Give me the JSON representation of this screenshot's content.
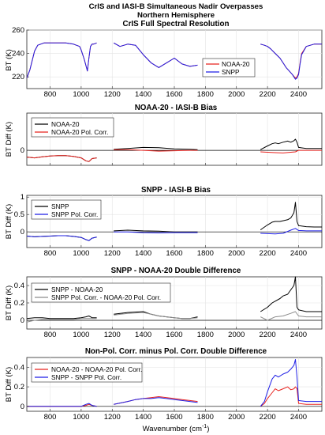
{
  "figure": {
    "title_lines": [
      "CrIS and IASI-B Simultaneous Nadir Overpasses",
      "Northern Hemisphere",
      "CrIS Full Spectral Resolution"
    ],
    "xlabel": "Wavenumber (cm⁻¹)",
    "xlabel_main": "Wavenumber (cm",
    "xlabel_sup": "-1",
    "xlabel_close": ")"
  },
  "chart_data": [
    {
      "type": "line",
      "title": "",
      "xlabel": "",
      "ylabel": "BT (K)",
      "xlim": [
        650,
        2550
      ],
      "ylim": [
        210,
        260
      ],
      "xticks": [
        800,
        1000,
        1200,
        1400,
        1600,
        1800,
        2000,
        2200,
        2400
      ],
      "yticks": [
        220,
        240,
        260
      ],
      "grid": true,
      "legend_position": "right",
      "series": [
        {
          "name": "NOAA-20",
          "color": "#e8231f",
          "x": [
            650,
            670,
            700,
            720,
            760,
            800,
            850,
            900,
            950,
            990,
            1000,
            1020,
            1030,
            1040,
            1050,
            1060,
            1070,
            1080,
            1100,
            1210,
            1250,
            1300,
            1350,
            1400,
            1450,
            1500,
            1550,
            1600,
            1650,
            1700,
            1750,
            2155,
            2180,
            2200,
            2220,
            2250,
            2280,
            2300,
            2320,
            2340,
            2360,
            2380,
            2390,
            2400,
            2410,
            2420,
            2450,
            2500,
            2550
          ],
          "y": [
            219,
            226,
            242,
            247,
            249,
            249,
            249,
            249,
            248,
            246,
            243,
            235,
            230,
            225,
            236,
            246,
            248,
            248,
            249,
            249,
            246,
            248,
            247,
            239,
            232,
            228,
            232,
            236,
            231,
            229,
            230,
            248,
            247,
            246,
            244,
            240,
            236,
            232,
            228,
            225,
            222,
            219,
            220,
            223,
            232,
            240,
            246,
            248,
            248
          ]
        },
        {
          "name": "SNPP",
          "color": "#1f1fe6",
          "x": [
            650,
            670,
            700,
            720,
            760,
            800,
            850,
            900,
            950,
            990,
            1000,
            1020,
            1030,
            1040,
            1050,
            1060,
            1070,
            1080,
            1100,
            1210,
            1250,
            1300,
            1350,
            1400,
            1450,
            1500,
            1550,
            1600,
            1650,
            1700,
            1750,
            2155,
            2180,
            2200,
            2220,
            2250,
            2280,
            2300,
            2320,
            2340,
            2360,
            2380,
            2390,
            2400,
            2410,
            2420,
            2450,
            2500,
            2550
          ],
          "y": [
            219,
            226,
            242,
            247,
            249,
            249,
            249,
            249,
            248,
            246,
            243,
            235,
            230,
            225,
            236,
            246,
            248,
            248,
            249,
            249,
            246,
            248,
            247,
            239,
            232,
            228,
            232,
            236,
            231,
            229,
            230,
            248,
            247,
            246,
            244,
            240,
            236,
            232,
            228,
            225,
            222,
            218,
            219,
            222,
            231,
            239,
            246,
            248,
            248
          ]
        }
      ]
    },
    {
      "type": "line",
      "title": "NOAA-20 - IASI-B Bias",
      "xlabel": "",
      "ylabel": "BT Diff (K)",
      "xlim": [
        650,
        2550
      ],
      "ylim": [
        -0.4,
        1.0
      ],
      "yticks": [
        0
      ],
      "grid": true,
      "legend_position": "top-left",
      "series": [
        {
          "name": "NOAA-20",
          "color": "#000000",
          "x": [
            650,
            700,
            750,
            800,
            850,
            900,
            950,
            1000,
            1030,
            1050,
            1070,
            1100,
            1210,
            1300,
            1400,
            1500,
            1600,
            1700,
            1750,
            2155,
            2200,
            2230,
            2250,
            2270,
            2300,
            2330,
            2350,
            2370,
            2380,
            2390,
            2400,
            2450,
            2500,
            2550
          ],
          "y": [
            -0.18,
            -0.2,
            -0.17,
            -0.15,
            -0.14,
            -0.14,
            -0.16,
            -0.2,
            -0.28,
            -0.3,
            -0.22,
            -0.2,
            0.03,
            0.05,
            0.08,
            0.07,
            0.04,
            0.03,
            0.02,
            0.02,
            0.12,
            0.18,
            0.2,
            0.18,
            0.22,
            0.25,
            0.22,
            0.26,
            0.3,
            0.22,
            0.08,
            0.05,
            0.05,
            0.05
          ]
        },
        {
          "name": "NOAA-20 Pol. Corr.",
          "color": "#e8231f",
          "x": [
            650,
            700,
            750,
            800,
            850,
            900,
            950,
            1000,
            1030,
            1050,
            1070,
            1100,
            1210,
            1300,
            1400,
            1500,
            1600,
            1700,
            1750,
            2155,
            2200,
            2250,
            2300,
            2350,
            2380,
            2400,
            2450,
            2500,
            2550
          ],
          "y": [
            -0.18,
            -0.2,
            -0.17,
            -0.15,
            -0.14,
            -0.14,
            -0.16,
            -0.2,
            -0.28,
            -0.3,
            -0.22,
            -0.2,
            0.02,
            0.02,
            0.0,
            -0.02,
            -0.01,
            0.0,
            0.0,
            -0.04,
            -0.05,
            -0.06,
            -0.07,
            -0.05,
            -0.04,
            0.0,
            0.0,
            0.0,
            0.0
          ]
        }
      ]
    },
    {
      "type": "line",
      "title": "SNPP - IASI-B Bias",
      "xlabel": "",
      "ylabel": "BT Diff (K)",
      "xlim": [
        650,
        2550
      ],
      "ylim": [
        -0.45,
        1.05
      ],
      "xticks": [
        800,
        1000,
        1200,
        1400,
        1600,
        1800,
        2000,
        2200,
        2400
      ],
      "yticks": [
        -0.5,
        0,
        0.5,
        1
      ],
      "grid": true,
      "legend_position": "top-left",
      "series": [
        {
          "name": "SNPP",
          "color": "#000000",
          "x": [
            650,
            700,
            750,
            800,
            850,
            900,
            950,
            1000,
            1030,
            1050,
            1070,
            1100,
            1210,
            1300,
            1400,
            1500,
            1600,
            1700,
            1750,
            2155,
            2200,
            2230,
            2250,
            2280,
            2300,
            2330,
            2350,
            2370,
            2380,
            2390,
            2400,
            2450,
            2500,
            2550
          ],
          "y": [
            -0.12,
            -0.14,
            -0.13,
            -0.12,
            -0.11,
            -0.11,
            -0.13,
            -0.16,
            -0.22,
            -0.25,
            -0.18,
            -0.15,
            0.03,
            0.05,
            0.03,
            0.02,
            0.0,
            0.0,
            0.0,
            0.06,
            0.2,
            0.28,
            0.3,
            0.3,
            0.32,
            0.35,
            0.4,
            0.55,
            0.85,
            0.3,
            0.18,
            0.15,
            0.14,
            0.14
          ]
        },
        {
          "name": "SNPP Pol. Corr.",
          "color": "#1f1fe6",
          "x": [
            650,
            700,
            750,
            800,
            850,
            900,
            950,
            1000,
            1030,
            1050,
            1070,
            1100,
            1210,
            1300,
            1400,
            1500,
            1600,
            1700,
            1750,
            2155,
            2200,
            2250,
            2300,
            2350,
            2380,
            2400,
            2450,
            2500,
            2550
          ],
          "y": [
            -0.12,
            -0.14,
            -0.13,
            -0.12,
            -0.11,
            -0.11,
            -0.13,
            -0.16,
            -0.22,
            -0.25,
            -0.18,
            -0.15,
            0.0,
            0.0,
            -0.02,
            -0.03,
            -0.02,
            -0.02,
            -0.02,
            -0.04,
            -0.05,
            -0.06,
            -0.04,
            0.05,
            0.1,
            0.04,
            0.03,
            0.03,
            0.03
          ]
        }
      ]
    },
    {
      "type": "line",
      "title": "SNPP - NOAA-20 Double Difference",
      "xlabel": "",
      "ylabel": "BT Diff (K)",
      "xlim": [
        650,
        2550
      ],
      "ylim": [
        -0.1,
        0.5
      ],
      "xticks": [
        800,
        1000,
        1200,
        1400,
        1600,
        1800,
        2000,
        2200,
        2400
      ],
      "yticks": [
        0,
        0.2,
        0.4
      ],
      "grid": true,
      "legend_position": "top-left",
      "series": [
        {
          "name": "SNPP - NOAA-20",
          "color": "#000000",
          "x": [
            650,
            700,
            750,
            800,
            850,
            900,
            950,
            1000,
            1030,
            1050,
            1070,
            1100,
            1210,
            1300,
            1400,
            1450,
            1500,
            1550,
            1600,
            1650,
            1700,
            1750,
            2155,
            2200,
            2230,
            2250,
            2280,
            2300,
            2330,
            2350,
            2370,
            2380,
            2390,
            2400,
            2450,
            2500,
            2550
          ],
          "y": [
            0.02,
            0.03,
            0.03,
            0.02,
            0.02,
            0.02,
            0.02,
            0.03,
            0.04,
            0.05,
            0.03,
            0.03,
            0.07,
            0.09,
            0.1,
            0.07,
            0.05,
            0.04,
            0.03,
            0.02,
            0.02,
            0.04,
            0.1,
            0.15,
            0.2,
            0.22,
            0.25,
            0.28,
            0.3,
            0.35,
            0.4,
            0.5,
            0.15,
            0.12,
            0.1,
            0.1,
            0.1
          ]
        },
        {
          "name": "SNPP Pol. Corr. - NOAA-20 Pol. Corr.",
          "color": "#8c8c8c",
          "x": [
            650,
            700,
            750,
            800,
            850,
            900,
            950,
            1000,
            1030,
            1050,
            1070,
            1100,
            1210,
            1300,
            1400,
            1450,
            1500,
            1550,
            1600,
            1650,
            1700,
            1750,
            2155,
            2200,
            2250,
            2300,
            2350,
            2380,
            2400,
            2450,
            2500,
            2550
          ],
          "y": [
            -0.02,
            0.0,
            0.01,
            0.01,
            0.01,
            0.01,
            0.01,
            0.02,
            0.02,
            0.02,
            0.02,
            0.02,
            0.06,
            0.08,
            0.09,
            0.07,
            0.05,
            0.04,
            0.03,
            0.02,
            0.02,
            0.03,
            0.04,
            0.0,
            0.04,
            0.05,
            0.08,
            0.1,
            0.05,
            0.04,
            0.04,
            0.04
          ]
        }
      ]
    },
    {
      "type": "line",
      "title": "Non-Pol. Corr. minus Pol. Corr. Double Difference",
      "xlabel": "Wavenumber (cm-1)",
      "ylabel": "BT Diff (K)",
      "xlim": [
        650,
        2550
      ],
      "ylim": [
        -0.05,
        0.5
      ],
      "xticks": [
        800,
        1000,
        1200,
        1400,
        1600,
        1800,
        2000,
        2200,
        2400
      ],
      "yticks": [
        0,
        0.2,
        0.4
      ],
      "grid": true,
      "legend_position": "top-left",
      "series": [
        {
          "name": "NOAA-20 - NOAA-20 Pol. Corr.",
          "color": "#e8231f",
          "x": [
            650,
            700,
            750,
            800,
            850,
            900,
            950,
            1000,
            1030,
            1050,
            1070,
            1100,
            1210,
            1300,
            1350,
            1400,
            1450,
            1500,
            1550,
            1600,
            1650,
            1700,
            1750,
            2155,
            2180,
            2200,
            2230,
            2250,
            2270,
            2300,
            2330,
            2350,
            2370,
            2380,
            2390,
            2400,
            2450,
            2500,
            2550
          ],
          "y": [
            0,
            0,
            0,
            0,
            0,
            0,
            0,
            0,
            0.01,
            0.02,
            0.01,
            0,
            0.02,
            0.05,
            0.07,
            0.08,
            0.09,
            0.1,
            0.09,
            0.08,
            0.07,
            0.06,
            0.05,
            0,
            0.03,
            0.08,
            0.14,
            0.18,
            0.16,
            0.18,
            0.2,
            0.17,
            0.18,
            0.2,
            0.18,
            0.03,
            0.02,
            0.02,
            0.02
          ]
        },
        {
          "name": "SNPP - SNPP Pol. Corr.",
          "color": "#1f1fe6",
          "x": [
            650,
            700,
            750,
            800,
            850,
            900,
            950,
            1000,
            1030,
            1050,
            1070,
            1100,
            1210,
            1300,
            1350,
            1400,
            1450,
            1500,
            1550,
            1600,
            1650,
            1700,
            1750,
            2155,
            2180,
            2200,
            2230,
            2250,
            2270,
            2300,
            2330,
            2350,
            2370,
            2380,
            2390,
            2400,
            2450,
            2500,
            2550
          ],
          "y": [
            0,
            0,
            0,
            0,
            0,
            0,
            0,
            0,
            0.02,
            0.03,
            0.01,
            0,
            0.02,
            0.05,
            0.07,
            0.08,
            0.08,
            0.09,
            0.08,
            0.07,
            0.06,
            0.05,
            0.04,
            0,
            0.05,
            0.15,
            0.28,
            0.32,
            0.3,
            0.33,
            0.35,
            0.38,
            0.42,
            0.48,
            0.3,
            0.06,
            0.05,
            0.05,
            0.05
          ]
        }
      ]
    }
  ]
}
